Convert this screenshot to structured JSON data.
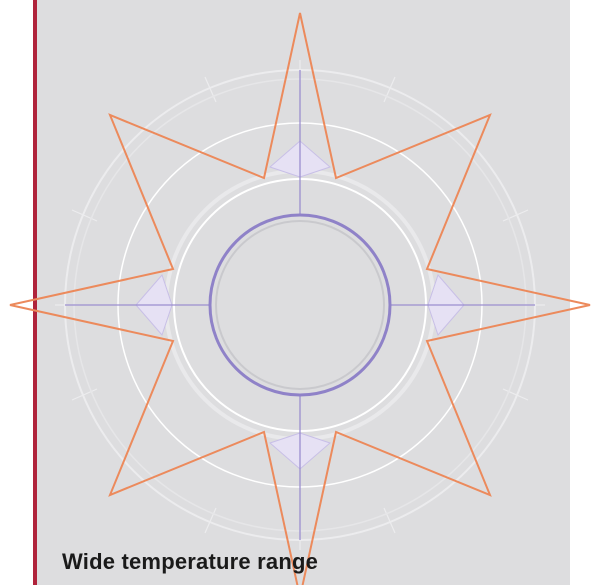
{
  "caption": {
    "title": "Wide temperature range"
  },
  "colors": {
    "panel": "#dddddf",
    "accent_bar": "#b0233b",
    "star": "#ec8a5c",
    "axis": "#9b8ecf",
    "fill": "#e6e1f4",
    "ring_light": "#ececee",
    "ring_white": "#ffffff",
    "text": "#1a1a1a"
  },
  "icons": [
    "compass-rose-icon"
  ]
}
